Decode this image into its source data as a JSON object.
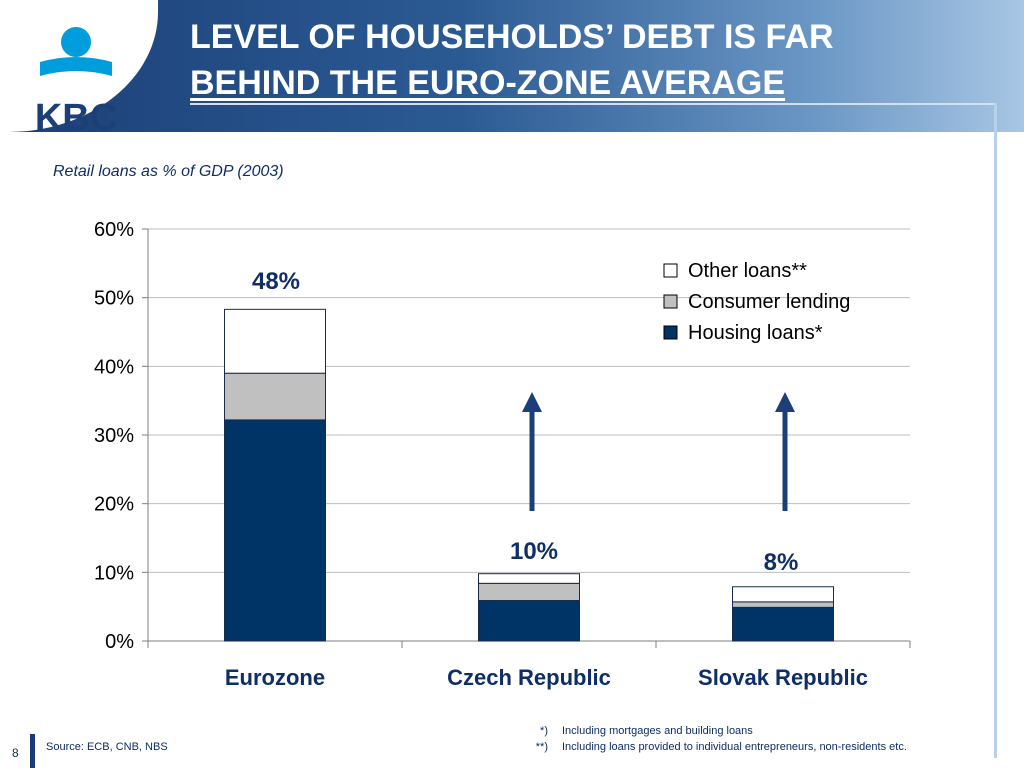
{
  "title": {
    "line1": "LEVEL OF HOUSEHOLDS’ DEBT IS FAR",
    "line2": "BEHIND THE EURO-ZONE AVERAGE"
  },
  "logo": {
    "text": "KBC",
    "colors": {
      "text": "#1c3f77",
      "sphere": "#009ddc"
    }
  },
  "subtitle": "Retail loans as % of GDP (2003)",
  "chart_data": {
    "type": "bar",
    "stacked": true,
    "categories": [
      "Eurozone",
      "Czech Republic",
      "Slovak Republic"
    ],
    "series": [
      {
        "name": "Housing loans*",
        "values": [
          32.2,
          5.9,
          4.9
        ],
        "color": "#003366"
      },
      {
        "name": "Consumer lending",
        "values": [
          6.8,
          2.5,
          0.8
        ],
        "color": "#c0c0c0"
      },
      {
        "name": "Other loans**",
        "values": [
          9.3,
          1.4,
          2.2
        ],
        "color": "#ffffff"
      }
    ],
    "totals_labels": [
      "48%",
      "10%",
      "8%"
    ],
    "y_ticks": [
      "0%",
      "10%",
      "20%",
      "30%",
      "40%",
      "50%",
      "60%"
    ],
    "ylim": [
      0,
      60
    ],
    "grid": true,
    "legend_position": "top-right",
    "annotations": [
      "upward arrow above Czech Republic",
      "upward arrow above Slovak Republic"
    ]
  },
  "footnotes": [
    {
      "mark": "*)",
      "text": "Including mortgages and building loans"
    },
    {
      "mark": "**)",
      "text": "Including loans provided to individual entrepreneurs, non-residents etc."
    }
  ],
  "source": "Source: ECB, CNB, NBS",
  "page_number": "8",
  "colors": {
    "accent": "#1c3f77",
    "text": "#0f2d66"
  }
}
